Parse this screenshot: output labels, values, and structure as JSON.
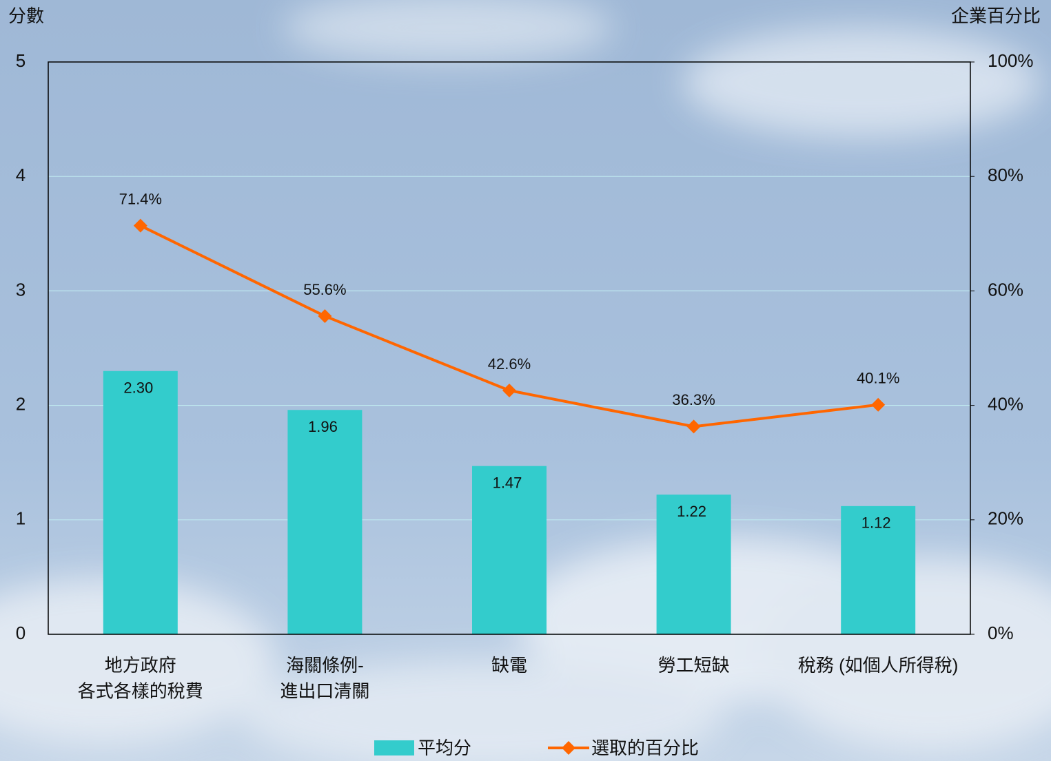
{
  "chart_data": {
    "type": "bar-line",
    "y_label": "分數",
    "y2_label": "企業百分比",
    "categories": [
      "地方政府\n各式各樣的稅費",
      "海關條例-\n進出口清關",
      "缺電",
      "勞工短缺",
      "稅務 (如個人所得稅)"
    ],
    "series": [
      {
        "name": "平均分",
        "type": "bar",
        "color": "#33cccc",
        "values": [
          2.3,
          1.96,
          1.47,
          1.22,
          1.12
        ],
        "value_labels": [
          "2.30",
          "1.96",
          "1.47",
          "1.22",
          "1.12"
        ]
      },
      {
        "name": "選取的百分比",
        "type": "line",
        "axis": "y2",
        "color": "#ff6600",
        "values": [
          71.4,
          55.6,
          42.6,
          36.3,
          40.1
        ],
        "value_labels": [
          "71.4%",
          "55.6%",
          "42.6%",
          "36.3%",
          "40.1%"
        ]
      }
    ],
    "ylim": [
      0,
      5
    ],
    "yticks": [
      0,
      1,
      2,
      3,
      4,
      5
    ],
    "y2lim": [
      0,
      100
    ],
    "y2ticks": [
      {
        "value": 0,
        "label": "0%"
      },
      {
        "value": 20,
        "label": "20%"
      },
      {
        "value": 40,
        "label": "40%"
      },
      {
        "value": 60,
        "label": "60%"
      },
      {
        "value": 80,
        "label": "80%"
      },
      {
        "value": 100,
        "label": "100%"
      }
    ],
    "grid": true,
    "legend": "bottom"
  }
}
